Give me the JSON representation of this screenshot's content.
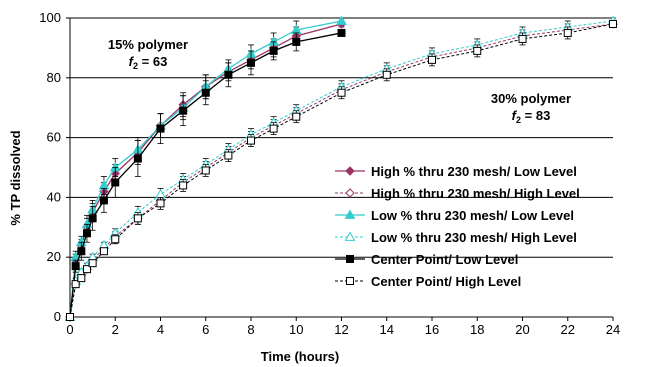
{
  "chart_data": {
    "type": "line",
    "xlabel": "Time (hours)",
    "ylabel": "% TP dissolved",
    "xlim": [
      0,
      24
    ],
    "ylim": [
      0,
      100
    ],
    "xticks": [
      0,
      2,
      4,
      6,
      8,
      10,
      12,
      14,
      16,
      18,
      20,
      22,
      24
    ],
    "yticks": [
      0,
      20,
      40,
      60,
      80,
      100
    ],
    "grid": "horizontal",
    "legend_position": "right",
    "annotations": [
      {
        "line1": "15% polymer",
        "line2_var": "f",
        "line2_sub": "2",
        "line2_rest": " = 63"
      },
      {
        "line1": "30% polymer",
        "line2_var": "f",
        "line2_sub": "2",
        "line2_rest": " = 83"
      }
    ],
    "series": [
      {
        "name": "High % thru 230 mesh/ Low Level",
        "color": "#993366",
        "marker": "diamond",
        "filled": true,
        "dashed": false,
        "x": [
          0,
          0.25,
          0.5,
          0.75,
          1,
          1.5,
          2,
          3,
          4,
          5,
          6,
          7,
          8,
          9,
          10,
          12
        ],
        "y": [
          0,
          19,
          24,
          30,
          35,
          42,
          48,
          55,
          64,
          71,
          77,
          82,
          86,
          90,
          94,
          98
        ],
        "err": [
          0,
          2,
          2,
          3,
          3,
          3,
          3,
          4,
          4,
          4,
          4,
          3,
          3,
          3,
          3,
          1
        ]
      },
      {
        "name": "High % thru 230 mesh/ High Level",
        "color": "#993366",
        "marker": "diamond",
        "filled": false,
        "dashed": true,
        "x": [
          0,
          0.25,
          0.5,
          0.75,
          1,
          1.5,
          2,
          3,
          4,
          5,
          6,
          7,
          8,
          9,
          10,
          12,
          14,
          16,
          18,
          20,
          22,
          24
        ],
        "y": [
          0,
          11,
          14,
          16,
          19,
          23,
          27,
          33,
          39,
          45,
          50,
          55,
          60,
          64,
          68,
          76,
          82,
          87,
          90,
          94,
          96,
          98
        ],
        "err": [
          0,
          1,
          1,
          1,
          1,
          1,
          1.5,
          2,
          2,
          2,
          2,
          2,
          2,
          2,
          2,
          2,
          2,
          2,
          2,
          2,
          2,
          1
        ]
      },
      {
        "name": "Low % thru 230 mesh/ Low Level",
        "color": "#33CCCC",
        "marker": "triangle",
        "filled": true,
        "dashed": false,
        "x": [
          0,
          0.25,
          0.5,
          0.75,
          1,
          1.5,
          2,
          3,
          4,
          5,
          6,
          7,
          8,
          9,
          10,
          12
        ],
        "y": [
          0,
          20,
          25,
          31,
          36,
          44,
          50,
          56,
          64,
          70,
          77,
          83,
          88,
          92,
          96,
          99
        ],
        "err": [
          0,
          2,
          2,
          3,
          3,
          3,
          3,
          4,
          4,
          4,
          4,
          3,
          3,
          3,
          3,
          1
        ]
      },
      {
        "name": "Low % thru 230 mesh/ High Level",
        "color": "#33CCCC",
        "marker": "triangle",
        "filled": false,
        "dashed": true,
        "x": [
          0,
          0.25,
          0.5,
          0.75,
          1,
          1.5,
          2,
          3,
          4,
          5,
          6,
          7,
          8,
          9,
          10,
          12,
          14,
          16,
          18,
          20,
          22,
          24
        ],
        "y": [
          0,
          12,
          15,
          17,
          20,
          24,
          28,
          35,
          41,
          46,
          51,
          56,
          61,
          65,
          69,
          77,
          83,
          88,
          91,
          95,
          97,
          99
        ],
        "err": [
          0,
          1,
          1,
          1,
          1,
          1,
          1.5,
          2,
          2,
          2,
          2,
          2,
          2,
          2,
          2,
          2,
          2,
          2,
          2,
          2,
          2,
          1
        ]
      },
      {
        "name": "Center Point/ Low Level",
        "color": "#000000",
        "marker": "square",
        "filled": true,
        "dashed": false,
        "x": [
          0,
          0.25,
          0.5,
          0.75,
          1,
          1.5,
          2,
          3,
          4,
          5,
          6,
          7,
          8,
          9,
          10,
          12
        ],
        "y": [
          0,
          17,
          22,
          28,
          33,
          39,
          45,
          53,
          63,
          69,
          75,
          81,
          85,
          89,
          92,
          95
        ],
        "err": [
          0,
          2,
          3,
          3,
          4,
          4,
          5,
          6,
          5,
          5,
          4,
          4,
          4,
          3,
          3,
          1
        ]
      },
      {
        "name": "Center Point/ High Level",
        "color": "#000000",
        "marker": "square",
        "filled": false,
        "dashed": true,
        "x": [
          0,
          0.25,
          0.5,
          0.75,
          1,
          1.5,
          2,
          3,
          4,
          5,
          6,
          7,
          8,
          9,
          10,
          12,
          14,
          16,
          18,
          20,
          22,
          24
        ],
        "y": [
          0,
          11,
          13,
          16,
          18,
          22,
          26,
          33,
          38,
          44,
          49,
          54,
          59,
          63,
          67,
          75,
          81,
          86,
          89,
          93,
          95,
          98
        ],
        "err": [
          0,
          1,
          1,
          1,
          1,
          1,
          1.5,
          2,
          2,
          2,
          2,
          2,
          2,
          2,
          2,
          2,
          2,
          2,
          2,
          2,
          2,
          1
        ]
      }
    ]
  }
}
